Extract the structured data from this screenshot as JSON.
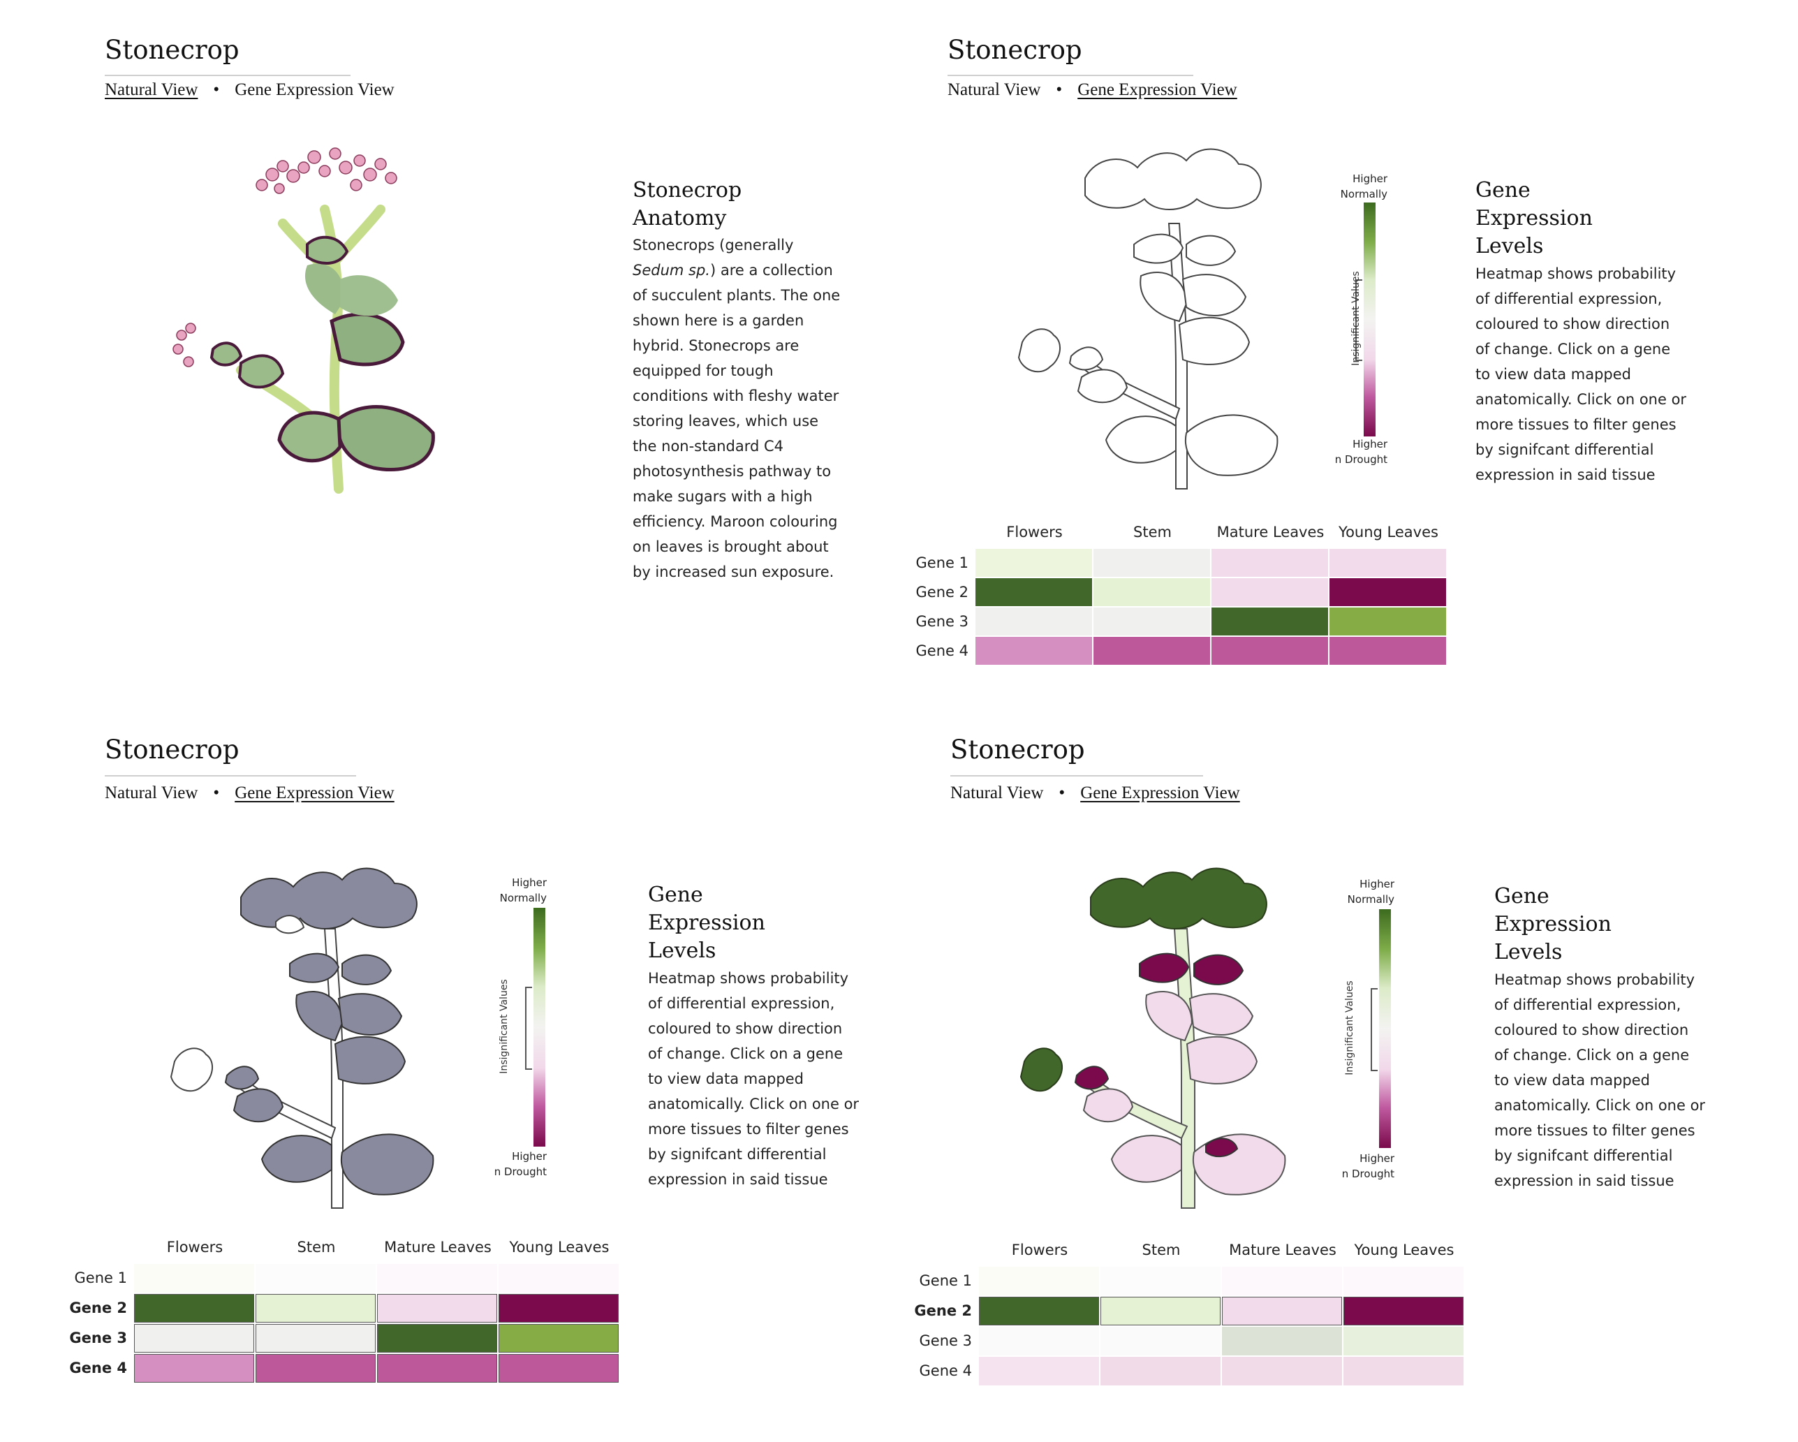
{
  "brand": "Stonecrop",
  "nav": {
    "natural": "Natural View",
    "separator": "•",
    "gene": "Gene Expression View"
  },
  "panels": [
    {
      "active_view": "natural",
      "info_title": "Stonecrop Anatomy",
      "info_body_parts": [
        "Stonecrops (generally ",
        "Sedum sp.",
        ") are a collection of succulent plants. The one shown here is a garden hybrid. Stonecrops are equipped for tough conditions with fleshy water storing leaves, which use the non-standard C4 photosynthesis pathway to make sugars with a high efficiency. Maroon colouring on leaves is brought about by increased sun exposure."
      ]
    },
    {
      "active_view": "gene",
      "info_title": "Gene Expression Levels",
      "info_body": "Heatmap shows probability of differential expression, coloured to show direction of change. Click on a gene to view data mapped anatomically. Click on one or more tissues to filter genes by signifcant differential expression in said tissue",
      "plant_style": "outline",
      "selected_gene": null
    },
    {
      "active_view": "gene",
      "info_title": "Gene Expression Levels",
      "info_body": "Heatmap shows probability of differential expression, coloured to show direction of change. Click on a gene to view data mapped anatomically. Click on one or more tissues to filter genes by signifcant differential expression in said tissue",
      "plant_style": "gray-selected-tissues",
      "selected_gene": null,
      "bold_genes": [
        "Gene 2",
        "Gene 3",
        "Gene 4"
      ]
    },
    {
      "active_view": "gene",
      "info_title": "Gene Expression Levels",
      "info_body": "Heatmap shows probability of differential expression, coloured to show direction of change. Click on a gene to view data mapped anatomically. Click on one or more tissues to filter genes by signifcant differential expression in said tissue",
      "plant_style": "gene-mapped",
      "selected_gene": "Gene 2",
      "bold_genes": [
        "Gene 2"
      ]
    }
  ],
  "legend": {
    "top": "Higher\nNormally",
    "bottom": "Higher\nn Drought",
    "middle": "Insignificant Values"
  },
  "heatmap": {
    "columns": [
      "Flowers",
      "Stem",
      "Mature Leaves",
      "Young Leaves"
    ],
    "rows": [
      "Gene 1",
      "Gene 2",
      "Gene 3",
      "Gene 4"
    ],
    "colors_full": [
      [
        "#edf5dc",
        "#f0f0ee",
        "#f2dbea",
        "#f2dbea"
      ],
      [
        "#42672a",
        "#e6f2d4",
        "#f2dbea",
        "#7a0a4b"
      ],
      [
        "#f0f0ee",
        "#f0f0ee",
        "#42672a",
        "#86ac45"
      ],
      [
        "#d58fc0",
        "#bd599b",
        "#bd599b",
        "#bd599b"
      ]
    ],
    "colors_faded_gene2": [
      [
        "#fbfcf6",
        "#fcfcfc",
        "#fdf8fb",
        "#fdf8fb"
      ],
      [
        "#42672a",
        "#e6f2d4",
        "#f2dbea",
        "#7a0a4b"
      ],
      [
        "#fafafa",
        "#fafafa",
        "#dce2d6",
        "#e6f0dc"
      ],
      [
        "#f5e4ef",
        "#f1dbe9",
        "#f1dbe9",
        "#f1dbe9"
      ]
    ],
    "colors_faded_gene1": [
      [
        "#fbfcf6",
        "#fcfcfc",
        "#fdf8fb",
        "#fdf8fb"
      ],
      [
        "#42672a",
        "#e6f2d4",
        "#f2dbea",
        "#7a0a4b"
      ],
      [
        "#f0f0ee",
        "#f0f0ee",
        "#42672a",
        "#86ac45"
      ],
      [
        "#d58fc0",
        "#bd599b",
        "#bd599b",
        "#bd599b"
      ]
    ]
  }
}
